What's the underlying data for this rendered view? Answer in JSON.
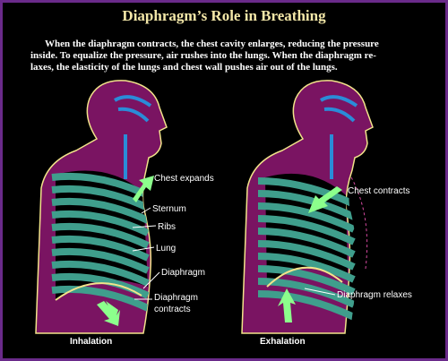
{
  "title": "Diaphragm’s Role in Breathing",
  "description": [
    "When the diaphragm contracts, the chest cavity enlarges, reducing the pressure",
    "inside. To equalize the pressure, air rushes into the lungs.  When the diaphragm re-",
    "laxes, the elasticity of the lungs and chest wall pushes air out of the lungs."
  ],
  "panels": [
    {
      "caption": "Inhalation",
      "labels": [
        "Chest expands",
        "Sternum",
        "Ribs",
        "Lung",
        "Diaphragm",
        [
          "Diaphragm",
          "contracts"
        ]
      ]
    },
    {
      "caption": "Exhalation",
      "labels": [
        "Chest contracts",
        "Diaphragm relaxes"
      ]
    }
  ]
}
